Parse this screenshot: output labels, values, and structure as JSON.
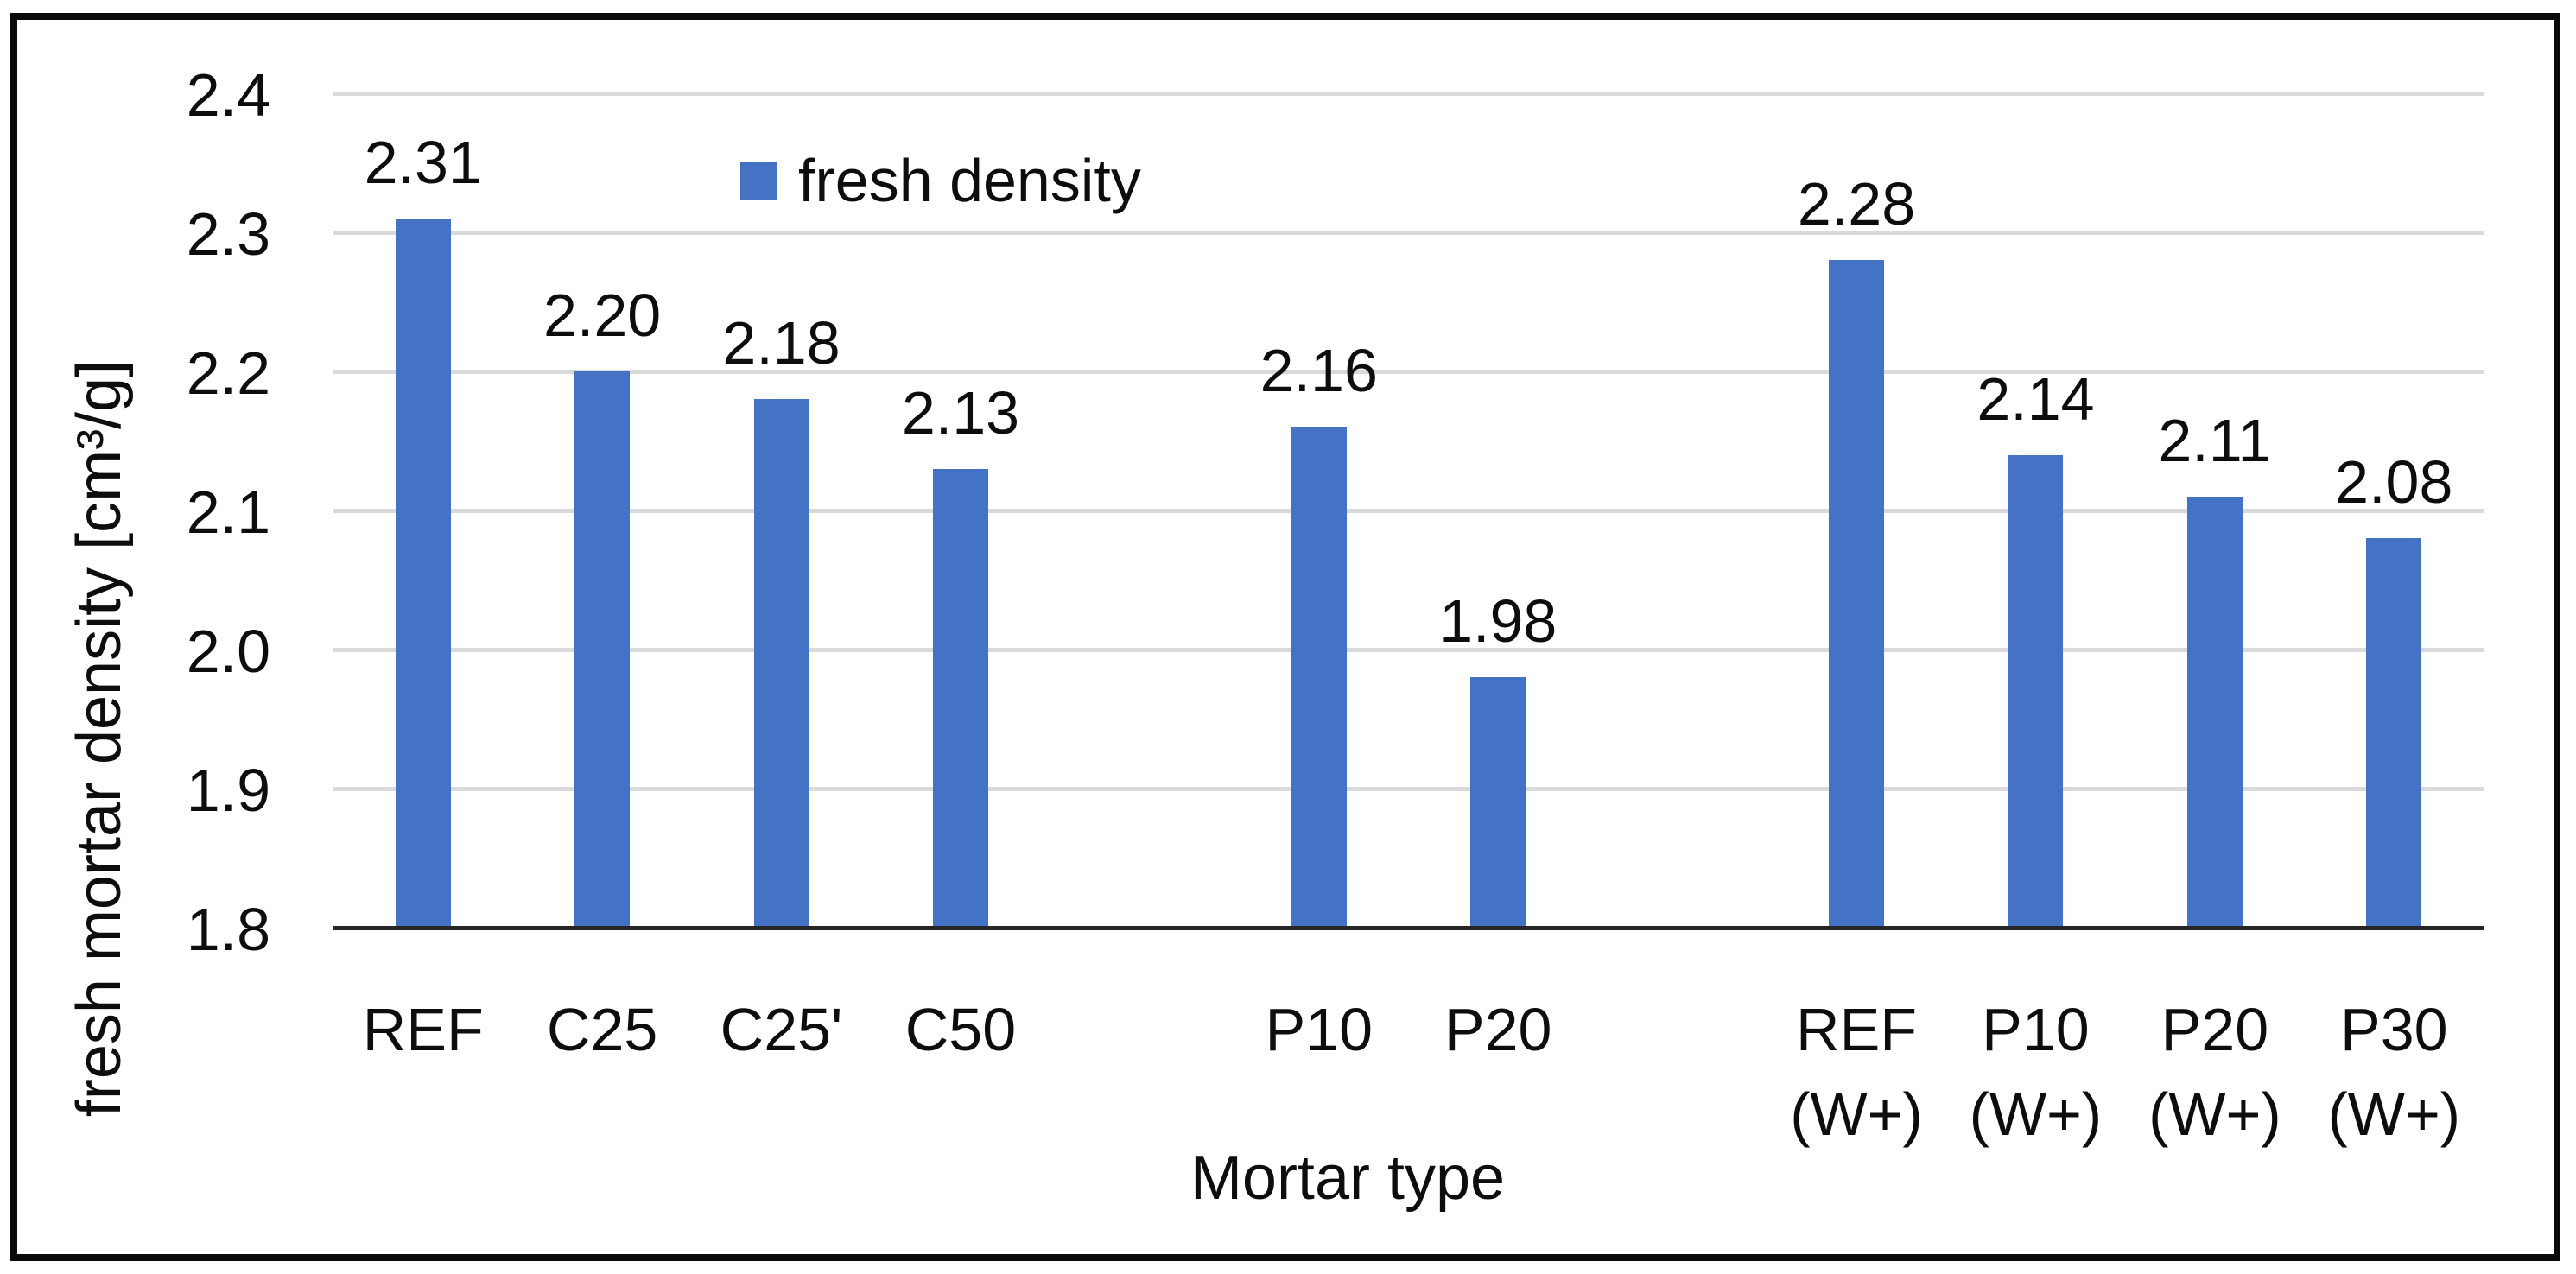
{
  "chart_data": {
    "type": "bar",
    "title": "",
    "xlabel": "Mortar type",
    "ylabel": "fresh mortar density [cm³/g]",
    "legend": [
      {
        "label": "fresh density",
        "color": "#4472C4"
      }
    ],
    "legend_position": "top-center",
    "grid": true,
    "ylim": [
      1.8,
      2.4
    ],
    "ytick_step": 0.1,
    "ytick_labels": [
      "2.4",
      "2.3",
      "2.2",
      "2.1",
      "2.0",
      "1.9",
      "1.8"
    ],
    "categories": [
      "REF",
      "C25",
      "C25'",
      "C50",
      "P10",
      "P20",
      "REF (W+)",
      "P10 (W+)",
      "P20 (W+)",
      "P30 (W+)"
    ],
    "category_lines": [
      [
        "REF"
      ],
      [
        "C25"
      ],
      [
        "C25'"
      ],
      [
        "C50"
      ],
      [
        "P10"
      ],
      [
        "P20"
      ],
      [
        "REF",
        "(W+)"
      ],
      [
        "P10",
        "(W+)"
      ],
      [
        "P20",
        "(W+)"
      ],
      [
        "P30",
        "(W+)"
      ]
    ],
    "series": [
      {
        "name": "fresh density",
        "values": [
          2.31,
          2.2,
          2.18,
          2.13,
          2.16,
          1.98,
          2.28,
          2.14,
          2.11,
          2.08
        ]
      }
    ],
    "data_labels": [
      "2.31",
      "2.20",
      "2.18",
      "2.13",
      "2.16",
      "1.98",
      "2.28",
      "2.14",
      "2.11",
      "2.08"
    ],
    "slot_indices": [
      0,
      1,
      2,
      3,
      5,
      6,
      8,
      9,
      10,
      11
    ],
    "num_slots": 12,
    "colors": {
      "bar": "#4472C4",
      "gridline": "#D9D9D9",
      "axis_line": "#262626",
      "text": "#0d0d0d",
      "background": "#FFFFFF",
      "frame_border": "#0a0a0a"
    }
  }
}
